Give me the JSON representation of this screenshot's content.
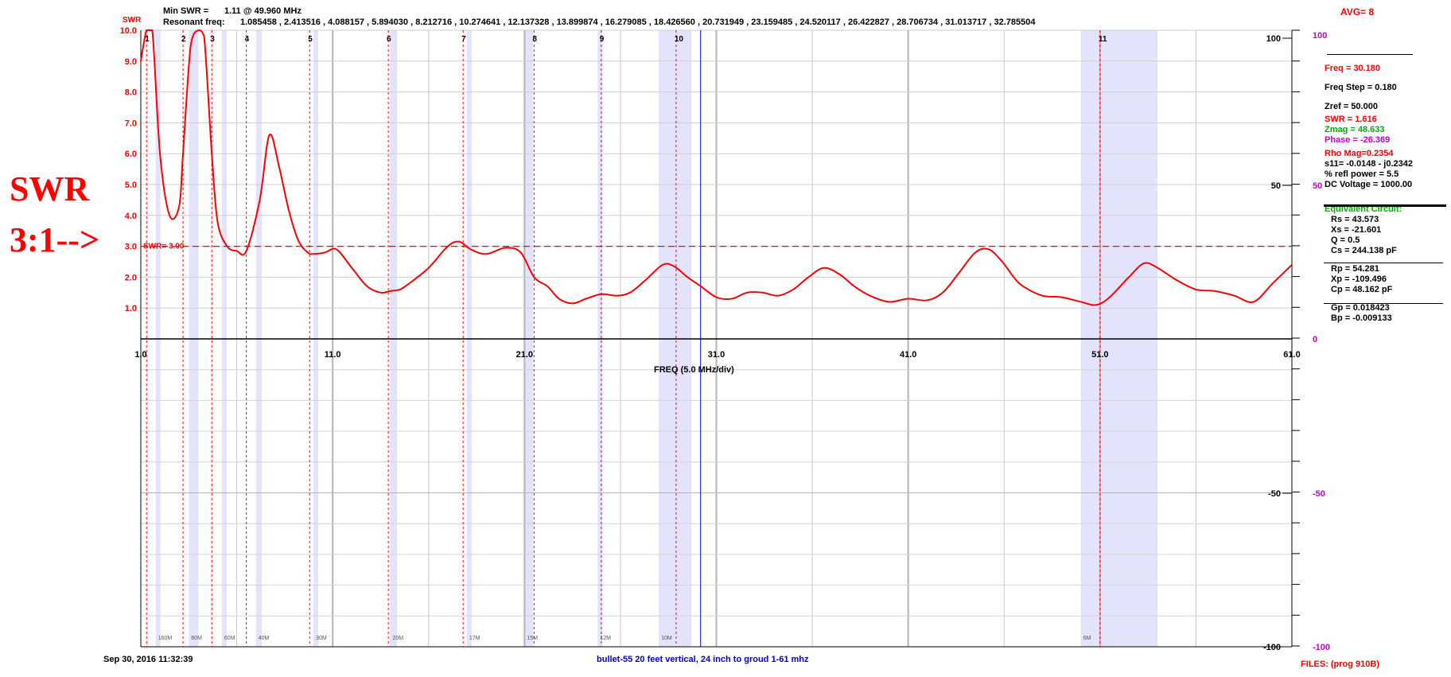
{
  "header": {
    "min_swr_label": "Min SWR =",
    "min_swr_value": "1.11 @  49.960 MHz",
    "resonant_label": "Resonant freq:",
    "resonant_values": "1.085458 , 2.413516 , 4.088157 , 5.894030 , 8.212716 , 10.274641 , 12.137328 , 13.899874 , 16.279085 , 18.426560 , 20.731949 , 23.159485 , 24.520117 , 26.422827 , 28.706734 , 31.013717 , 32.785504",
    "avg": "AVG=  8"
  },
  "annotation": {
    "line1": "SWR",
    "line2": "3:1-->"
  },
  "panel": {
    "freq": "Freq = 30.180",
    "freq_step": "Freq Step = 0.180",
    "zref": "Zref =   50.000",
    "swr": "SWR =   1.616",
    "zmag": "Zmag =   48.633",
    "phase": "Phase =  -26.369",
    "rho_mag": "Rho Mag=0.2354",
    "s11": "s11= -0.0148 - j0.2342",
    "refl_power": "% refl power =  5.5",
    "dc_voltage": "DC Voltage =  1000.00",
    "equiv_title": "Equivalent Circuit:",
    "rs": "Rs =   43.573",
    "xs": "Xs =  -21.601",
    "q": "Q =  0.5",
    "cs": "Cs =  244.138  pF",
    "rp": "Rp =   54.281",
    "xp": "Xp =  -109.496",
    "cp": "Cp =   48.162  pF",
    "gp": "Gp =  0.018423",
    "bp": "Bp =  -0.009133"
  },
  "footer": {
    "timestamp": "Sep 30, 2016  11:32:39",
    "description": "bullet-55 20 feet vertical, 24 inch to groud 1-61 mhz",
    "files": "FILES:  (prog 910B)"
  },
  "chart_data": {
    "type": "line",
    "xlabel": "FREQ (5.0 MHz/div)",
    "ylabel": "SWR",
    "xlim": [
      1.0,
      61.0
    ],
    "swr_ylim": [
      0,
      10
    ],
    "swr_ticks": [
      "10.0",
      "9.0",
      "8.0",
      "7.0",
      "6.0",
      "5.0",
      "4.0",
      "3.0",
      "2.0",
      "1.0"
    ],
    "x_ticks": [
      "1.0",
      "11.0",
      "21.0",
      "31.0",
      "41.0",
      "51.0",
      "61.0"
    ],
    "right_ticks_black": [
      "100",
      "50",
      "-50",
      "-100"
    ],
    "right_ticks_magenta": [
      "100",
      "50",
      "0",
      "-50",
      "-100"
    ],
    "swr_reference": {
      "value": 3.0,
      "label": "SWR= 3.00",
      "color": "#ff0000"
    },
    "cursor_freq": 30.18,
    "markers": [
      {
        "label": "1",
        "x": 1.3
      },
      {
        "label": "2",
        "x": 3.2
      },
      {
        "label": "3",
        "x": 4.7
      },
      {
        "label": "4",
        "x": 6.5
      },
      {
        "label": "5",
        "x": 9.8
      },
      {
        "label": "6",
        "x": 13.9
      },
      {
        "label": "7",
        "x": 17.8
      },
      {
        "label": "8",
        "x": 21.5
      },
      {
        "label": "9",
        "x": 25.0
      },
      {
        "label": "10",
        "x": 28.9
      },
      {
        "label": "11",
        "x": 51.0
      }
    ],
    "bands": [
      {
        "label": "160M",
        "start": 1.8,
        "end": 2.0
      },
      {
        "label": "80M",
        "start": 3.5,
        "end": 4.0
      },
      {
        "label": "60M",
        "start": 5.3,
        "end": 5.4
      },
      {
        "label": "40M",
        "start": 7.0,
        "end": 7.3
      },
      {
        "label": "30M",
        "start": 10.1,
        "end": 10.15
      },
      {
        "label": "20M",
        "start": 14.0,
        "end": 14.35
      },
      {
        "label": "17M",
        "start": 18.07,
        "end": 18.17
      },
      {
        "label": "15M",
        "start": 21.0,
        "end": 21.45
      },
      {
        "label": "12M",
        "start": 24.89,
        "end": 24.99
      },
      {
        "label": "10M",
        "start": 28.0,
        "end": 29.7
      },
      {
        "label": "6M",
        "start": 50.0,
        "end": 54.0
      }
    ],
    "series": [
      {
        "name": "SWR",
        "color": "#ff0000",
        "x": [
          1.0,
          1.3,
          1.6,
          2.0,
          2.5,
          3.0,
          3.2,
          3.6,
          4.0,
          4.3,
          4.7,
          5.0,
          5.5,
          6.0,
          6.5,
          7.2,
          7.7,
          8.2,
          8.7,
          9.2,
          9.7,
          10.0,
          10.6,
          11.2,
          12.0,
          12.8,
          13.5,
          14.0,
          14.5,
          15.0,
          16.0,
          17.0,
          17.6,
          18.2,
          19.0,
          20.0,
          20.8,
          21.5,
          22.2,
          22.8,
          23.5,
          24.2,
          25.0,
          25.8,
          26.5,
          27.3,
          28.2,
          28.8,
          29.5,
          30.2,
          31.0,
          31.8,
          32.6,
          33.4,
          34.2,
          35.0,
          35.8,
          36.6,
          37.4,
          38.2,
          39.0,
          40.0,
          41.0,
          42.0,
          42.8,
          43.6,
          44.5,
          45.2,
          45.9,
          46.5,
          47.0,
          48.0,
          49.0,
          50.0,
          50.8,
          51.5,
          52.5,
          53.3,
          54.0,
          55.0,
          56.0,
          57.0,
          58.0,
          59.0,
          60.0,
          61.0
        ],
        "values": [
          9.0,
          10.0,
          10.0,
          6.0,
          4.0,
          4.3,
          6.0,
          9.5,
          10.0,
          9.8,
          6.0,
          3.8,
          3.0,
          2.85,
          2.85,
          4.5,
          6.6,
          5.6,
          4.2,
          3.2,
          2.8,
          2.75,
          2.8,
          2.9,
          2.3,
          1.7,
          1.5,
          1.55,
          1.6,
          1.8,
          2.3,
          3.0,
          3.15,
          2.9,
          2.75,
          2.95,
          2.8,
          2.0,
          1.7,
          1.3,
          1.15,
          1.3,
          1.45,
          1.4,
          1.5,
          1.9,
          2.4,
          2.35,
          2.0,
          1.7,
          1.35,
          1.3,
          1.5,
          1.5,
          1.4,
          1.6,
          2.0,
          2.3,
          2.1,
          1.7,
          1.4,
          1.2,
          1.3,
          1.25,
          1.5,
          2.1,
          2.8,
          2.9,
          2.5,
          2.0,
          1.7,
          1.4,
          1.35,
          1.2,
          1.1,
          1.35,
          2.0,
          2.45,
          2.3,
          1.9,
          1.6,
          1.55,
          1.4,
          1.2,
          1.8,
          2.4
        ]
      }
    ]
  }
}
